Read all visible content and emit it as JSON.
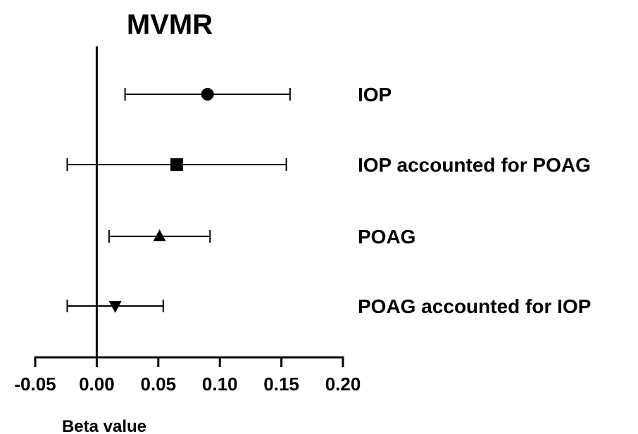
{
  "chart_data": {
    "type": "scatter",
    "subtype": "forest-plot",
    "title": "MVMR",
    "xlabel": "Beta value",
    "ylabel": "",
    "xlim": [
      -0.05,
      0.2
    ],
    "xticks": [
      -0.05,
      0.0,
      0.05,
      0.1,
      0.15,
      0.2
    ],
    "xtick_labels": [
      "-0.05",
      "0.00",
      "0.05",
      "0.10",
      "0.15",
      "0.20"
    ],
    "reference_line_x": 0,
    "grid": false,
    "legend": "none",
    "series": [
      {
        "name": "IOP",
        "estimate": 0.09,
        "ci_low": 0.023,
        "ci_high": 0.157,
        "marker": "circle"
      },
      {
        "name": "IOP accounted for POAG",
        "estimate": 0.065,
        "ci_low": -0.024,
        "ci_high": 0.154,
        "marker": "square"
      },
      {
        "name": "POAG",
        "estimate": 0.051,
        "ci_low": 0.01,
        "ci_high": 0.092,
        "marker": "triangle-up"
      },
      {
        "name": "POAG accounted for IOP",
        "estimate": 0.015,
        "ci_low": -0.024,
        "ci_high": 0.054,
        "marker": "triangle-down"
      }
    ],
    "colors": {
      "ink": "#000000",
      "background": "#ffffff"
    }
  }
}
